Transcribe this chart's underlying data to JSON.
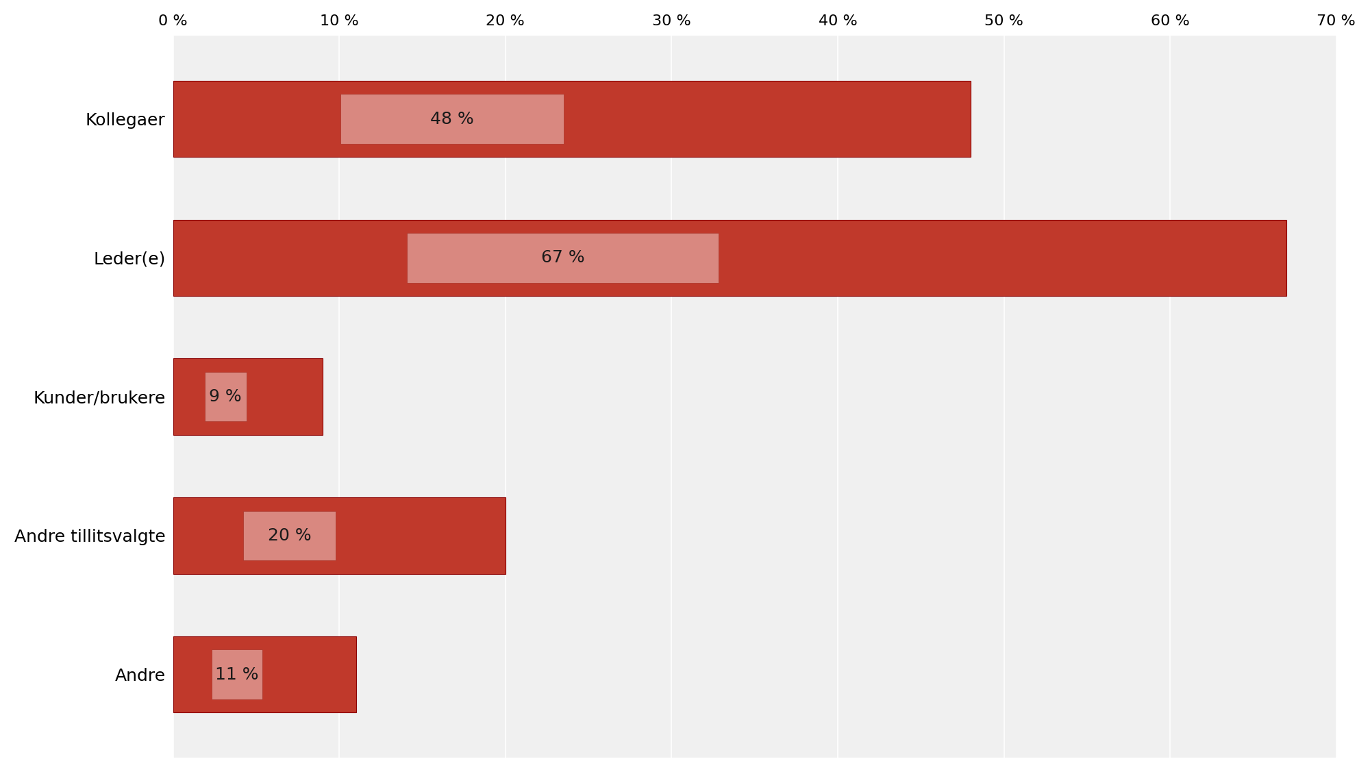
{
  "categories": [
    "Andre",
    "Andre tillitsvalgte",
    "Kunder/brukere",
    "Leder(e)",
    "Kollegaer"
  ],
  "values": [
    11,
    20,
    9,
    67,
    48
  ],
  "labels": [
    "11 %",
    "20 %",
    "9 %",
    "67 %",
    "48 %"
  ],
  "bar_color": "#C0392B",
  "bar_color_dark": "#A93226",
  "label_box_color": "#D98880",
  "xlim": [
    0,
    70
  ],
  "xticks": [
    0,
    10,
    20,
    30,
    40,
    50,
    60,
    70
  ],
  "xtick_labels": [
    "0 %",
    "10 %",
    "20 %",
    "30 %",
    "40 %",
    "50 %",
    "60 %",
    "70 %"
  ],
  "plot_bg": "#F0F0F0",
  "fig_bg": "#FFFFFF",
  "bar_height": 0.55,
  "label_fontsize": 18,
  "tick_fontsize": 16,
  "ylabel_fontsize": 18,
  "grid_color": "#FFFFFF",
  "text_color": "#1A1A1A"
}
